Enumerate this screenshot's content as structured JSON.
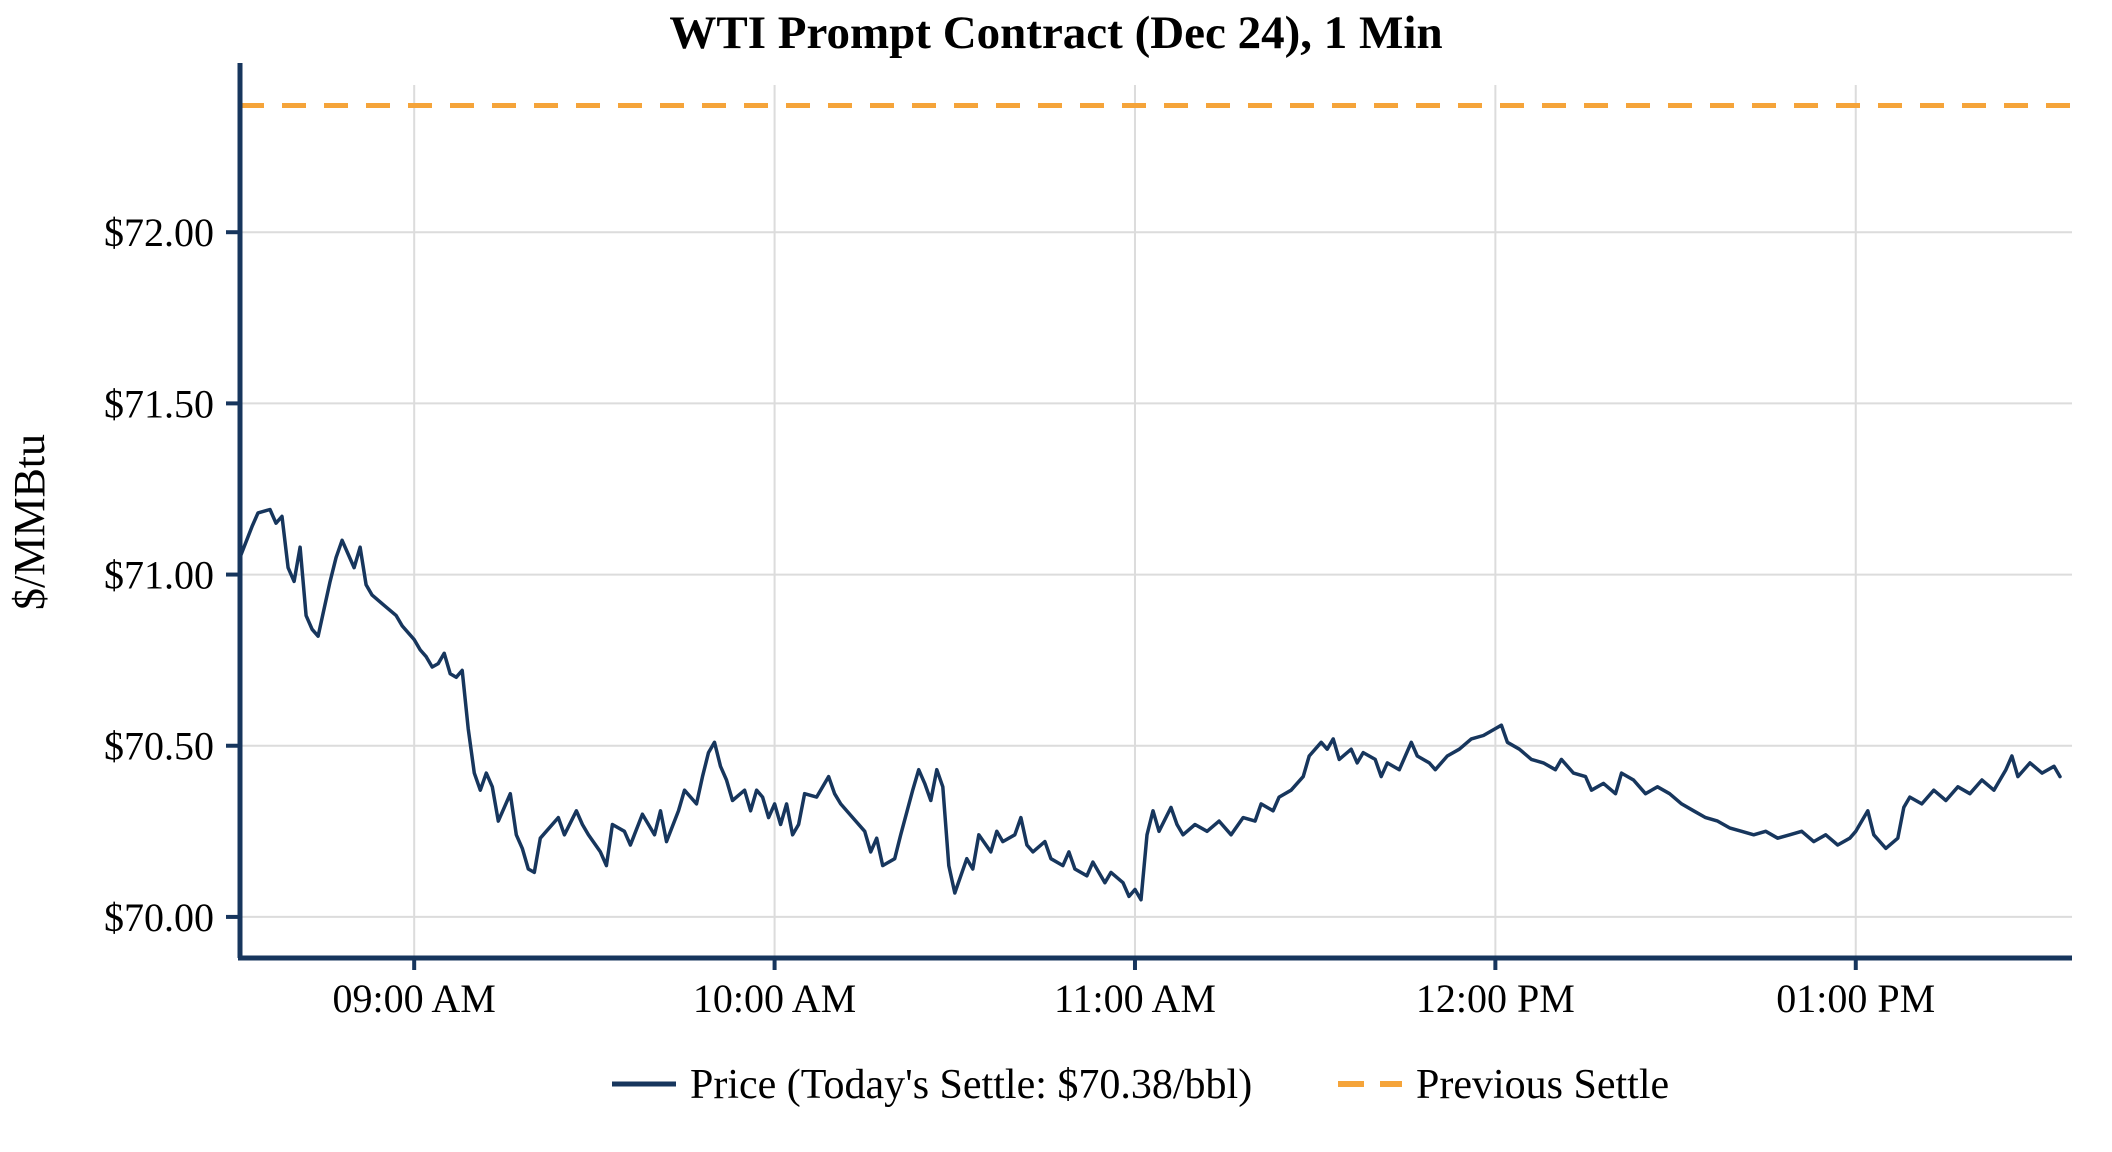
{
  "chart_data": {
    "type": "line",
    "title": "WTI Prompt Contract (Dec 24), 1 Min",
    "ylabel": "$/MMBtu",
    "xlabel": "",
    "grid": true,
    "legend_position": "bottom-center",
    "colors": {
      "price": "#17365d",
      "previous_settle": "#f5a43a",
      "grid": "#dcdcdc",
      "axis": "#17365d",
      "text": "#000000"
    },
    "ylim": [
      69.88,
      72.43
    ],
    "xlim": [
      "08:31",
      "13:36"
    ],
    "y_ticks": [
      {
        "value": 70.0,
        "label": "$70.00"
      },
      {
        "value": 70.5,
        "label": "$70.50"
      },
      {
        "value": 71.0,
        "label": "$71.00"
      },
      {
        "value": 71.5,
        "label": "$71.50"
      },
      {
        "value": 72.0,
        "label": "$72.00"
      }
    ],
    "x_ticks": [
      {
        "time": "09:00",
        "label": "09:00 AM"
      },
      {
        "time": "10:00",
        "label": "10:00 AM"
      },
      {
        "time": "11:00",
        "label": "11:00 AM"
      },
      {
        "time": "12:00",
        "label": "12:00 PM"
      },
      {
        "time": "13:00",
        "label": "01:00 PM"
      }
    ],
    "previous_settle": 72.37,
    "today_settle": 70.38,
    "legend": [
      {
        "label": "Price (Today's Settle: $70.38/bbl)",
        "style": "solid"
      },
      {
        "label": "Previous Settle",
        "style": "dashed"
      }
    ],
    "series": [
      {
        "name": "Price",
        "points": [
          [
            "08:31",
            71.05
          ],
          [
            "08:33",
            71.14
          ],
          [
            "08:34",
            71.18
          ],
          [
            "08:36",
            71.19
          ],
          [
            "08:37",
            71.15
          ],
          [
            "08:38",
            71.17
          ],
          [
            "08:39",
            71.02
          ],
          [
            "08:40",
            70.98
          ],
          [
            "08:41",
            71.08
          ],
          [
            "08:42",
            70.88
          ],
          [
            "08:43",
            70.84
          ],
          [
            "08:44",
            70.82
          ],
          [
            "08:45",
            70.9
          ],
          [
            "08:46",
            70.98
          ],
          [
            "08:47",
            71.05
          ],
          [
            "08:48",
            71.1
          ],
          [
            "08:49",
            71.06
          ],
          [
            "08:50",
            71.02
          ],
          [
            "08:51",
            71.08
          ],
          [
            "08:52",
            70.97
          ],
          [
            "08:53",
            70.94
          ],
          [
            "08:55",
            70.91
          ],
          [
            "08:57",
            70.88
          ],
          [
            "08:58",
            70.85
          ],
          [
            "09:00",
            70.81
          ],
          [
            "09:01",
            70.78
          ],
          [
            "09:02",
            70.76
          ],
          [
            "09:03",
            70.73
          ],
          [
            "09:04",
            70.74
          ],
          [
            "09:05",
            70.77
          ],
          [
            "09:06",
            70.71
          ],
          [
            "09:07",
            70.7
          ],
          [
            "09:08",
            70.72
          ],
          [
            "09:09",
            70.55
          ],
          [
            "09:10",
            70.42
          ],
          [
            "09:11",
            70.37
          ],
          [
            "09:12",
            70.42
          ],
          [
            "09:13",
            70.38
          ],
          [
            "09:14",
            70.28
          ],
          [
            "09:15",
            70.32
          ],
          [
            "09:16",
            70.36
          ],
          [
            "09:17",
            70.24
          ],
          [
            "09:18",
            70.2
          ],
          [
            "09:19",
            70.14
          ],
          [
            "09:20",
            70.13
          ],
          [
            "09:21",
            70.23
          ],
          [
            "09:22",
            70.25
          ],
          [
            "09:24",
            70.29
          ],
          [
            "09:25",
            70.24
          ],
          [
            "09:27",
            70.31
          ],
          [
            "09:28",
            70.27
          ],
          [
            "09:29",
            70.24
          ],
          [
            "09:31",
            70.19
          ],
          [
            "09:32",
            70.15
          ],
          [
            "09:33",
            70.27
          ],
          [
            "09:35",
            70.25
          ],
          [
            "09:36",
            70.21
          ],
          [
            "09:38",
            70.3
          ],
          [
            "09:40",
            70.24
          ],
          [
            "09:41",
            70.31
          ],
          [
            "09:42",
            70.22
          ],
          [
            "09:44",
            70.31
          ],
          [
            "09:45",
            70.37
          ],
          [
            "09:47",
            70.33
          ],
          [
            "09:48",
            70.41
          ],
          [
            "09:49",
            70.48
          ],
          [
            "09:50",
            70.51
          ],
          [
            "09:51",
            70.44
          ],
          [
            "09:52",
            70.4
          ],
          [
            "09:53",
            70.34
          ],
          [
            "09:55",
            70.37
          ],
          [
            "09:56",
            70.31
          ],
          [
            "09:57",
            70.37
          ],
          [
            "09:58",
            70.35
          ],
          [
            "09:59",
            70.29
          ],
          [
            "10:00",
            70.33
          ],
          [
            "10:01",
            70.27
          ],
          [
            "10:02",
            70.33
          ],
          [
            "10:03",
            70.24
          ],
          [
            "10:04",
            70.27
          ],
          [
            "10:05",
            70.36
          ],
          [
            "10:07",
            70.35
          ],
          [
            "10:09",
            70.41
          ],
          [
            "10:10",
            70.36
          ],
          [
            "10:11",
            70.33
          ],
          [
            "10:13",
            70.29
          ],
          [
            "10:15",
            70.25
          ],
          [
            "10:16",
            70.19
          ],
          [
            "10:17",
            70.23
          ],
          [
            "10:18",
            70.15
          ],
          [
            "10:20",
            70.17
          ],
          [
            "10:21",
            70.24
          ],
          [
            "10:23",
            70.37
          ],
          [
            "10:24",
            70.43
          ],
          [
            "10:25",
            70.39
          ],
          [
            "10:26",
            70.34
          ],
          [
            "10:27",
            70.43
          ],
          [
            "10:28",
            70.38
          ],
          [
            "10:29",
            70.15
          ],
          [
            "10:30",
            70.07
          ],
          [
            "10:31",
            70.12
          ],
          [
            "10:32",
            70.17
          ],
          [
            "10:33",
            70.14
          ],
          [
            "10:34",
            70.24
          ],
          [
            "10:36",
            70.19
          ],
          [
            "10:37",
            70.25
          ],
          [
            "10:38",
            70.22
          ],
          [
            "10:40",
            70.24
          ],
          [
            "10:41",
            70.29
          ],
          [
            "10:42",
            70.21
          ],
          [
            "10:43",
            70.19
          ],
          [
            "10:45",
            70.22
          ],
          [
            "10:46",
            70.17
          ],
          [
            "10:48",
            70.15
          ],
          [
            "10:49",
            70.19
          ],
          [
            "10:50",
            70.14
          ],
          [
            "10:52",
            70.12
          ],
          [
            "10:53",
            70.16
          ],
          [
            "10:55",
            70.1
          ],
          [
            "10:56",
            70.13
          ],
          [
            "10:58",
            70.1
          ],
          [
            "10:59",
            70.06
          ],
          [
            "11:00",
            70.08
          ],
          [
            "11:01",
            70.05
          ],
          [
            "11:02",
            70.24
          ],
          [
            "11:03",
            70.31
          ],
          [
            "11:04",
            70.25
          ],
          [
            "11:06",
            70.32
          ],
          [
            "11:07",
            70.27
          ],
          [
            "11:08",
            70.24
          ],
          [
            "11:10",
            70.27
          ],
          [
            "11:12",
            70.25
          ],
          [
            "11:14",
            70.28
          ],
          [
            "11:16",
            70.24
          ],
          [
            "11:18",
            70.29
          ],
          [
            "11:20",
            70.28
          ],
          [
            "11:21",
            70.33
          ],
          [
            "11:23",
            70.31
          ],
          [
            "11:24",
            70.35
          ],
          [
            "11:26",
            70.37
          ],
          [
            "11:28",
            70.41
          ],
          [
            "11:29",
            70.47
          ],
          [
            "11:31",
            70.51
          ],
          [
            "11:32",
            70.49
          ],
          [
            "11:33",
            70.52
          ],
          [
            "11:34",
            70.46
          ],
          [
            "11:36",
            70.49
          ],
          [
            "11:37",
            70.45
          ],
          [
            "11:38",
            70.48
          ],
          [
            "11:40",
            70.46
          ],
          [
            "11:41",
            70.41
          ],
          [
            "11:42",
            70.45
          ],
          [
            "11:44",
            70.43
          ],
          [
            "11:46",
            70.51
          ],
          [
            "11:47",
            70.47
          ],
          [
            "11:49",
            70.45
          ],
          [
            "11:50",
            70.43
          ],
          [
            "11:52",
            70.47
          ],
          [
            "11:54",
            70.49
          ],
          [
            "11:56",
            70.52
          ],
          [
            "11:58",
            70.53
          ],
          [
            "12:00",
            70.55
          ],
          [
            "12:01",
            70.56
          ],
          [
            "12:02",
            70.51
          ],
          [
            "12:04",
            70.49
          ],
          [
            "12:06",
            70.46
          ],
          [
            "12:08",
            70.45
          ],
          [
            "12:10",
            70.43
          ],
          [
            "12:11",
            70.46
          ],
          [
            "12:13",
            70.42
          ],
          [
            "12:15",
            70.41
          ],
          [
            "12:16",
            70.37
          ],
          [
            "12:18",
            70.39
          ],
          [
            "12:20",
            70.36
          ],
          [
            "12:21",
            70.42
          ],
          [
            "12:23",
            70.4
          ],
          [
            "12:25",
            70.36
          ],
          [
            "12:27",
            70.38
          ],
          [
            "12:29",
            70.36
          ],
          [
            "12:31",
            70.33
          ],
          [
            "12:33",
            70.31
          ],
          [
            "12:35",
            70.29
          ],
          [
            "12:37",
            70.28
          ],
          [
            "12:39",
            70.26
          ],
          [
            "12:41",
            70.25
          ],
          [
            "12:43",
            70.24
          ],
          [
            "12:45",
            70.25
          ],
          [
            "12:47",
            70.23
          ],
          [
            "12:49",
            70.24
          ],
          [
            "12:51",
            70.25
          ],
          [
            "12:53",
            70.22
          ],
          [
            "12:55",
            70.24
          ],
          [
            "12:57",
            70.21
          ],
          [
            "12:59",
            70.23
          ],
          [
            "13:00",
            70.25
          ],
          [
            "13:02",
            70.31
          ],
          [
            "13:03",
            70.24
          ],
          [
            "13:05",
            70.2
          ],
          [
            "13:07",
            70.23
          ],
          [
            "13:08",
            70.32
          ],
          [
            "13:09",
            70.35
          ],
          [
            "13:11",
            70.33
          ],
          [
            "13:13",
            70.37
          ],
          [
            "13:15",
            70.34
          ],
          [
            "13:17",
            70.38
          ],
          [
            "13:19",
            70.36
          ],
          [
            "13:21",
            70.4
          ],
          [
            "13:23",
            70.37
          ],
          [
            "13:25",
            70.43
          ],
          [
            "13:26",
            70.47
          ],
          [
            "13:27",
            70.41
          ],
          [
            "13:29",
            70.45
          ],
          [
            "13:31",
            70.42
          ],
          [
            "13:33",
            70.44
          ],
          [
            "13:34",
            70.41
          ]
        ]
      }
    ]
  }
}
